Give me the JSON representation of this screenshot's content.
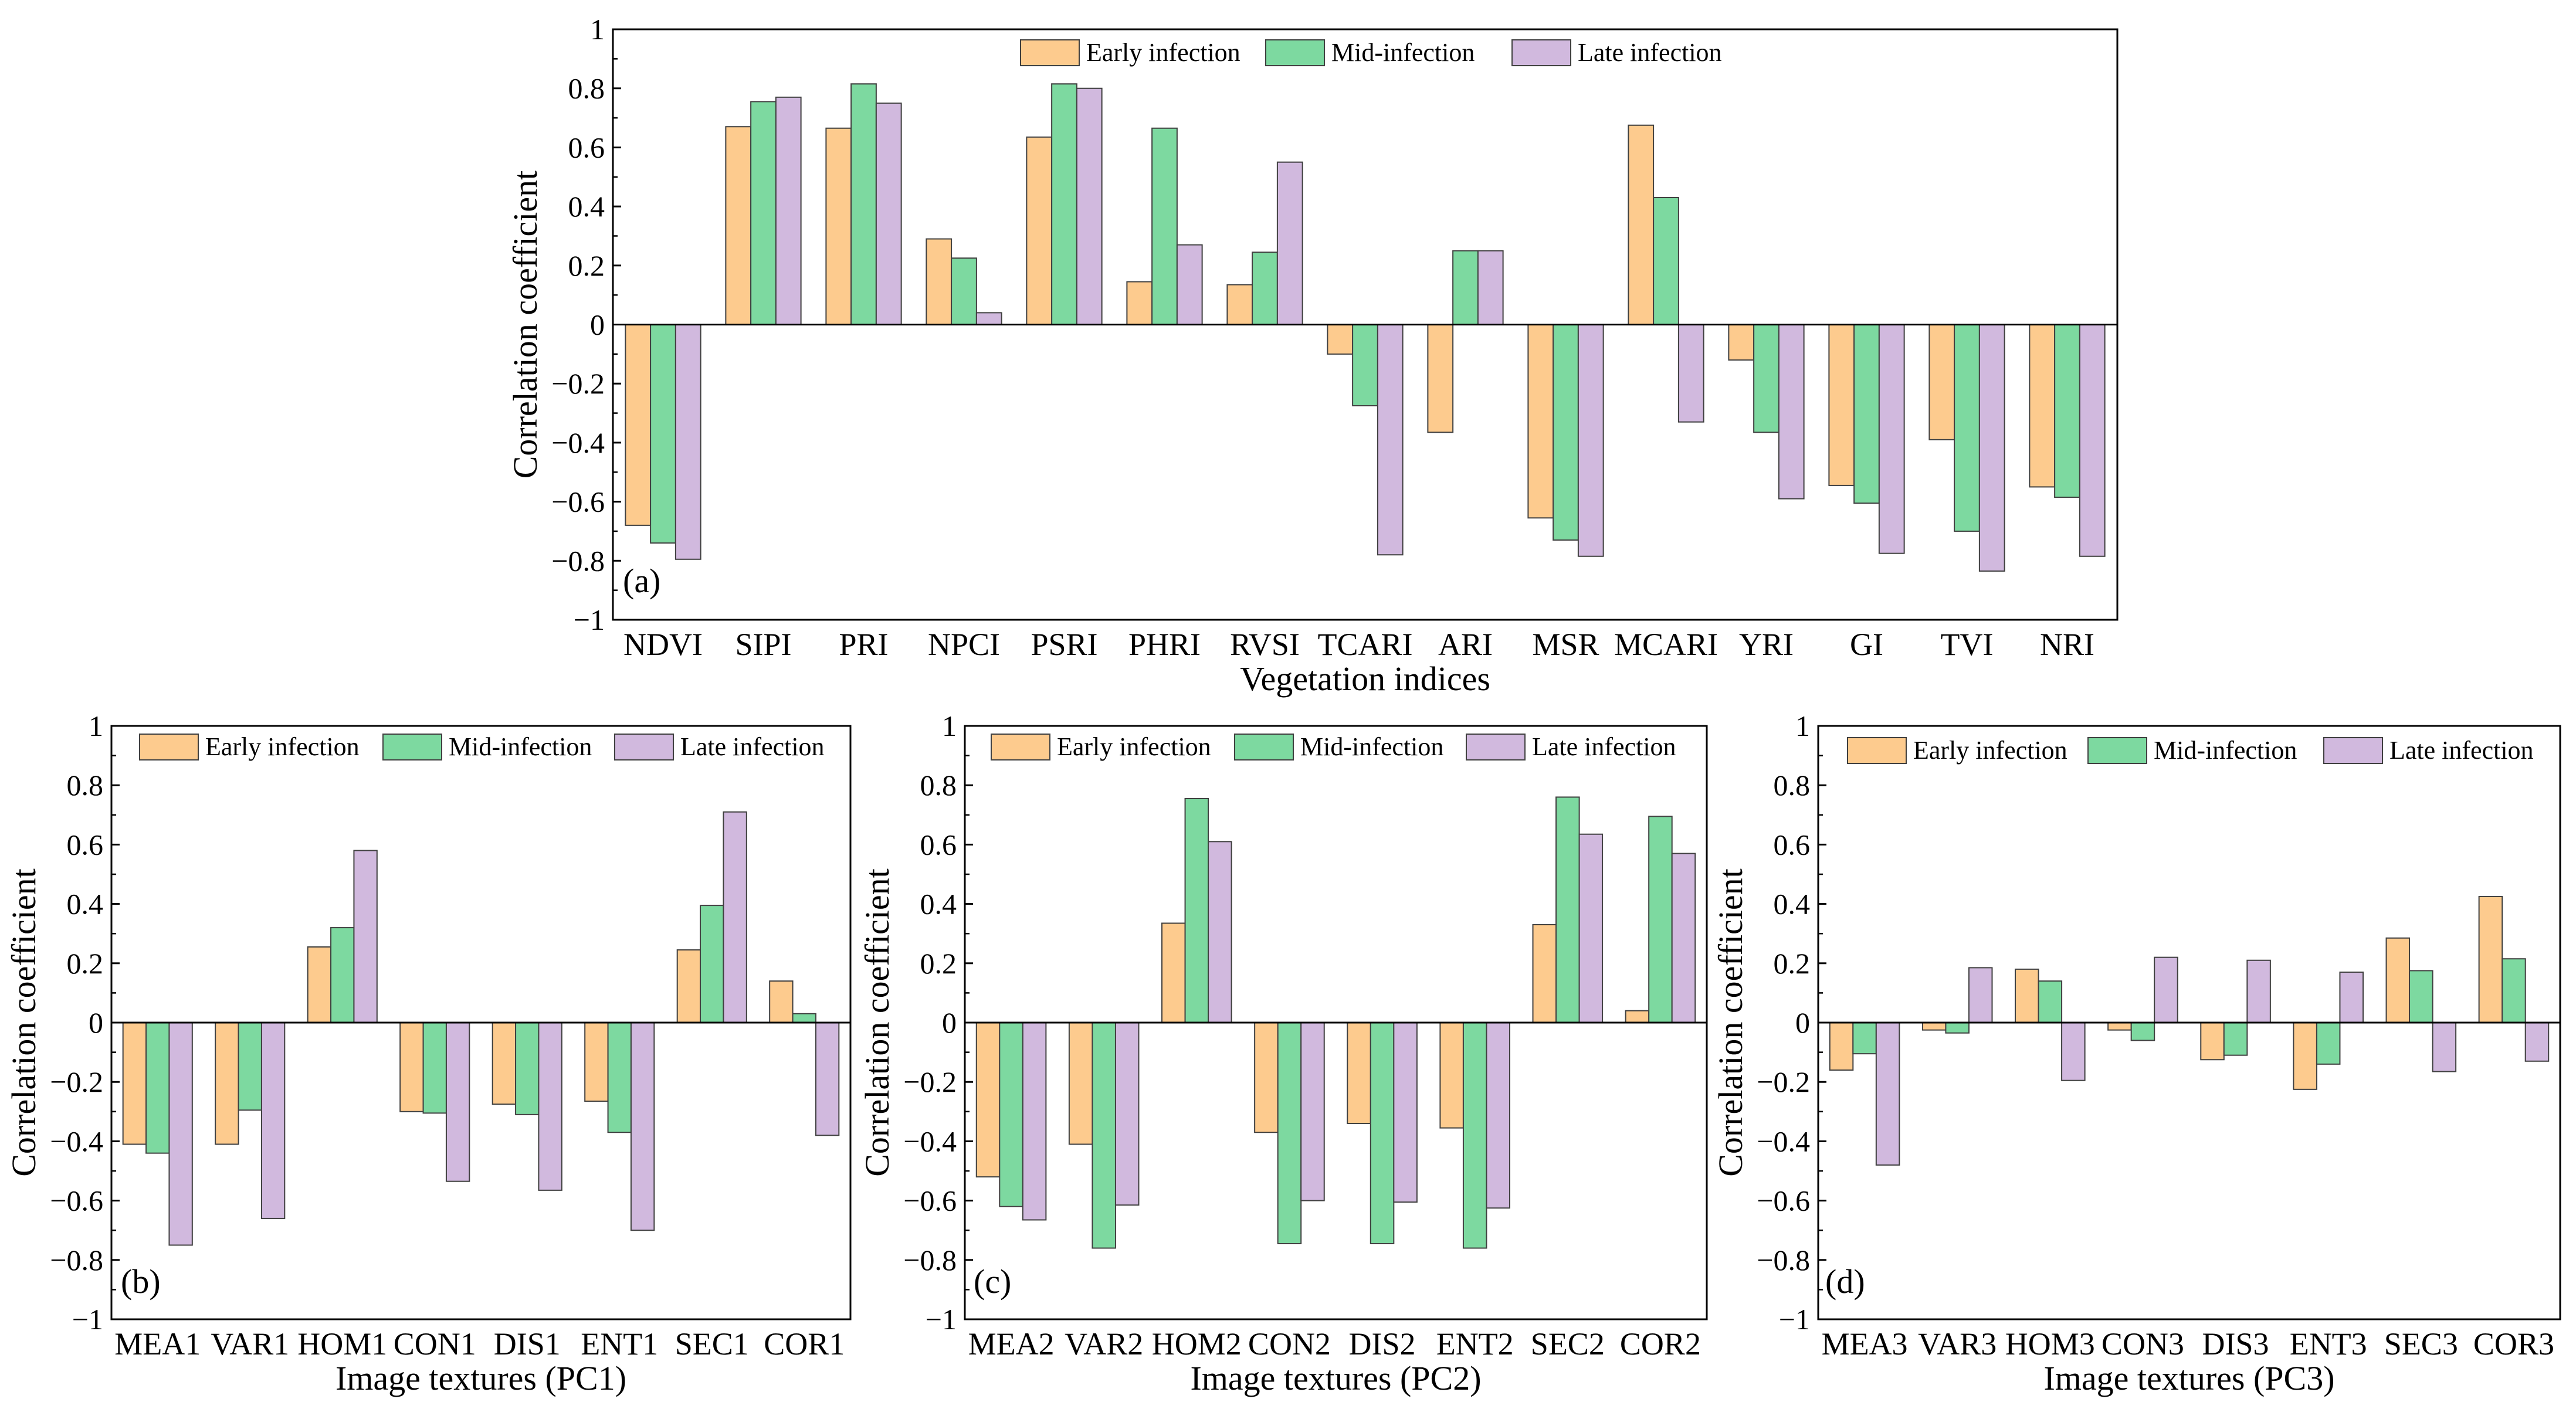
{
  "legend": {
    "labels": [
      "Early infection",
      "Mid-infection",
      "Late infection"
    ]
  },
  "colors": {
    "early": "#FDCB8E",
    "mid": "#7DD9A0",
    "late": "#D1B9DE",
    "stroke": "#404040"
  },
  "chart_data": [
    {
      "id": "a",
      "panel_label": "(a)",
      "type": "bar",
      "title": "",
      "xlabel": "Vegetation indices",
      "ylabel": "Correlation coefficient",
      "ylim": [
        -1,
        1
      ],
      "yticks": [
        -1,
        -0.8,
        -0.6,
        -0.4,
        -0.2,
        0,
        0.2,
        0.4,
        0.6,
        0.8,
        1
      ],
      "ytick_labels": [
        "−1",
        "−0.8",
        "−0.6",
        "−0.4",
        "−0.2",
        "0",
        "0.2",
        "0.4",
        "0.6",
        "0.8",
        "1"
      ],
      "categories": [
        "NDVI",
        "SIPI",
        "PRI",
        "NPCI",
        "PSRI",
        "PHRI",
        "RVSI",
        "TCARI",
        "ARI",
        "MSR",
        "MCARI",
        "YRI",
        "GI",
        "TVI",
        "NRI"
      ],
      "series": [
        {
          "name": "Early infection",
          "values": [
            -0.68,
            0.67,
            0.665,
            0.29,
            0.635,
            0.145,
            0.135,
            -0.1,
            -0.365,
            -0.655,
            0.675,
            -0.12,
            -0.545,
            -0.39,
            -0.55
          ]
        },
        {
          "name": "Mid-infection",
          "values": [
            -0.74,
            0.755,
            0.815,
            0.225,
            0.815,
            0.665,
            0.245,
            -0.275,
            0.25,
            -0.73,
            0.43,
            -0.365,
            -0.605,
            -0.7,
            -0.585
          ]
        },
        {
          "name": "Late infection",
          "values": [
            -0.795,
            0.77,
            0.75,
            0.04,
            0.8,
            0.27,
            0.55,
            -0.78,
            0.25,
            -0.785,
            -0.33,
            -0.59,
            -0.775,
            -0.835,
            -0.785
          ]
        }
      ]
    },
    {
      "id": "b",
      "panel_label": "(b)",
      "type": "bar",
      "title": "",
      "xlabel": "Image textures (PC1)",
      "ylabel": "Correlation coefficient",
      "ylim": [
        -1,
        1
      ],
      "yticks": [
        -1,
        -0.8,
        -0.6,
        -0.4,
        -0.2,
        0,
        0.2,
        0.4,
        0.6,
        0.8,
        1
      ],
      "ytick_labels": [
        "−1",
        "−0.8",
        "−0.6",
        "−0.4",
        "−0.2",
        "0",
        "0.2",
        "0.4",
        "0.6",
        "0.8",
        "1"
      ],
      "categories": [
        "MEA1",
        "VAR1",
        "HOM1",
        "CON1",
        "DIS1",
        "ENT1",
        "SEC1",
        "COR1"
      ],
      "series": [
        {
          "name": "Early infection",
          "values": [
            -0.41,
            -0.41,
            0.255,
            -0.3,
            -0.275,
            -0.265,
            0.245,
            0.14
          ]
        },
        {
          "name": "Mid-infection",
          "values": [
            -0.44,
            -0.295,
            0.32,
            -0.305,
            -0.31,
            -0.37,
            0.395,
            0.03
          ]
        },
        {
          "name": "Late infection",
          "values": [
            -0.75,
            -0.66,
            0.58,
            -0.535,
            -0.565,
            -0.7,
            0.71,
            -0.38
          ]
        }
      ]
    },
    {
      "id": "c",
      "panel_label": "(c)",
      "type": "bar",
      "title": "",
      "xlabel": "Image textures (PC2)",
      "ylabel": "Correlation coefficient",
      "ylim": [
        -1,
        1
      ],
      "yticks": [
        -1,
        -0.8,
        -0.6,
        -0.4,
        -0.2,
        0,
        0.2,
        0.4,
        0.6,
        0.8,
        1
      ],
      "ytick_labels": [
        "−1",
        "−0.8",
        "−0.6",
        "−0.4",
        "−0.2",
        "0",
        "0.2",
        "0.4",
        "0.6",
        "0.8",
        "1"
      ],
      "categories": [
        "MEA2",
        "VAR2",
        "HOM2",
        "CON2",
        "DIS2",
        "ENT2",
        "SEC2",
        "COR2"
      ],
      "series": [
        {
          "name": "Early infection",
          "values": [
            -0.52,
            -0.41,
            0.335,
            -0.37,
            -0.34,
            -0.355,
            0.33,
            0.04
          ]
        },
        {
          "name": "Mid-infection",
          "values": [
            -0.62,
            -0.76,
            0.755,
            -0.745,
            -0.745,
            -0.76,
            0.76,
            0.695
          ]
        },
        {
          "name": "Late infection",
          "values": [
            -0.665,
            -0.615,
            0.61,
            -0.6,
            -0.605,
            -0.625,
            0.635,
            0.57
          ]
        }
      ]
    },
    {
      "id": "d",
      "panel_label": "(d)",
      "type": "bar",
      "title": "",
      "xlabel": "Image textures (PC3)",
      "ylabel": "Correlation coefficient",
      "ylim": [
        -1,
        1
      ],
      "yticks": [
        -1,
        -0.8,
        -0.6,
        -0.4,
        -0.2,
        0,
        0.2,
        0.4,
        0.6,
        0.8,
        1
      ],
      "ytick_labels": [
        "−1",
        "−0.8",
        "−0.6",
        "−0.4",
        "−0.2",
        "0",
        "0.2",
        "0.4",
        "0.6",
        "0.8",
        "1"
      ],
      "categories": [
        "MEA3",
        "VAR3",
        "HOM3",
        "CON3",
        "DIS3",
        "ENT3",
        "SEC3",
        "COR3"
      ],
      "series": [
        {
          "name": "Early infection",
          "values": [
            -0.16,
            -0.025,
            0.18,
            -0.025,
            -0.125,
            -0.225,
            0.285,
            0.425
          ]
        },
        {
          "name": "Mid-infection",
          "values": [
            -0.105,
            -0.035,
            0.14,
            -0.06,
            -0.11,
            -0.14,
            0.175,
            0.215
          ]
        },
        {
          "name": "Late infection",
          "values": [
            -0.48,
            0.185,
            -0.195,
            0.22,
            0.21,
            0.17,
            -0.165,
            -0.13
          ]
        }
      ]
    }
  ]
}
